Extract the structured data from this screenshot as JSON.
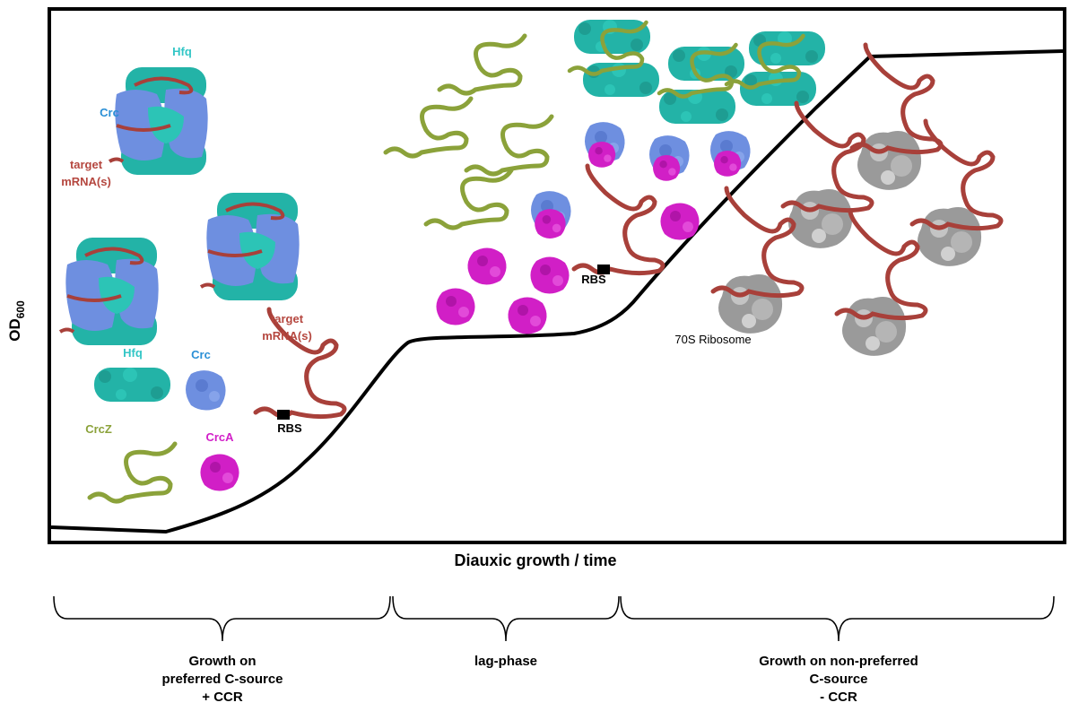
{
  "axes": {
    "y_label": "OD",
    "y_label_sub": "600",
    "x_label": "Diauxic growth / time"
  },
  "labels": {
    "hfq_complex": "Hfq",
    "crc_complex": "Crc",
    "target_complex": [
      "target",
      "mRNA(s)"
    ],
    "hfq": "Hfq",
    "crc": "Crc",
    "target": [
      "target",
      "mRNA(s)"
    ],
    "rbs": "RBS",
    "crcz": "CrcZ",
    "crca": "CrcA",
    "rbs_lag": "RBS",
    "ribosome": "70S Ribosome"
  },
  "phases": [
    {
      "label": [
        "Growth on",
        "preferred C-source",
        "+ CCR"
      ]
    },
    {
      "label": [
        "lag-phase"
      ]
    },
    {
      "label": [
        "Growth on non-preferred",
        "C-source",
        "- CCR"
      ]
    }
  ]
}
